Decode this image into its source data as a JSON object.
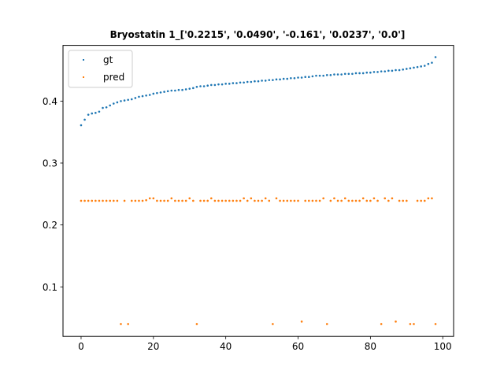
{
  "chart_data": {
    "type": "scatter",
    "title": "Bryostatin 1_['0.2215', '0.0490', '-0.161', '0.0237', '0.0']",
    "xlabel": "",
    "ylabel": "",
    "xlim": [
      -5,
      103
    ],
    "ylim": [
      0.02,
      0.49
    ],
    "xticks": [
      0,
      20,
      40,
      60,
      80,
      100
    ],
    "yticks": [
      0.1,
      0.2,
      0.3,
      0.4
    ],
    "grid": false,
    "legend_position": "top-left",
    "series": [
      {
        "name": "gt",
        "color": "#1f77b4",
        "x": [
          0,
          1,
          2,
          3,
          4,
          5,
          6,
          7,
          8,
          9,
          10,
          11,
          12,
          13,
          14,
          15,
          16,
          17,
          18,
          19,
          20,
          21,
          22,
          23,
          24,
          25,
          26,
          27,
          28,
          29,
          30,
          31,
          32,
          33,
          34,
          35,
          36,
          37,
          38,
          39,
          40,
          41,
          42,
          43,
          44,
          45,
          46,
          47,
          48,
          49,
          50,
          51,
          52,
          53,
          54,
          55,
          56,
          57,
          58,
          59,
          60,
          61,
          62,
          63,
          64,
          65,
          66,
          67,
          68,
          69,
          70,
          71,
          72,
          73,
          74,
          75,
          76,
          77,
          78,
          79,
          80,
          81,
          82,
          83,
          84,
          85,
          86,
          87,
          88,
          89,
          90,
          91,
          92,
          93,
          94,
          95,
          96,
          97,
          98
        ],
        "y": [
          0.361,
          0.37,
          0.378,
          0.38,
          0.381,
          0.383,
          0.389,
          0.39,
          0.393,
          0.396,
          0.398,
          0.4,
          0.401,
          0.402,
          0.403,
          0.405,
          0.407,
          0.408,
          0.409,
          0.41,
          0.412,
          0.413,
          0.414,
          0.415,
          0.416,
          0.417,
          0.417,
          0.418,
          0.418,
          0.419,
          0.42,
          0.421,
          0.423,
          0.424,
          0.424,
          0.425,
          0.426,
          0.426,
          0.427,
          0.427,
          0.428,
          0.428,
          0.429,
          0.429,
          0.43,
          0.43,
          0.431,
          0.431,
          0.432,
          0.432,
          0.433,
          0.433,
          0.434,
          0.434,
          0.435,
          0.435,
          0.436,
          0.436,
          0.437,
          0.437,
          0.438,
          0.438,
          0.439,
          0.439,
          0.44,
          0.441,
          0.441,
          0.441,
          0.442,
          0.442,
          0.443,
          0.443,
          0.443,
          0.444,
          0.444,
          0.444,
          0.445,
          0.445,
          0.445,
          0.446,
          0.446,
          0.447,
          0.447,
          0.448,
          0.448,
          0.449,
          0.449,
          0.45,
          0.45,
          0.451,
          0.452,
          0.453,
          0.454,
          0.455,
          0.456,
          0.457,
          0.46,
          0.462,
          0.471
        ]
      },
      {
        "name": "pred",
        "color": "#ff7f0e",
        "x": [
          0,
          1,
          2,
          3,
          4,
          5,
          6,
          7,
          8,
          9,
          10,
          11,
          12,
          13,
          14,
          15,
          16,
          17,
          18,
          19,
          20,
          21,
          22,
          23,
          24,
          25,
          26,
          27,
          28,
          29,
          30,
          31,
          32,
          33,
          34,
          35,
          36,
          37,
          38,
          39,
          40,
          41,
          42,
          43,
          44,
          45,
          46,
          47,
          48,
          49,
          50,
          51,
          52,
          53,
          54,
          55,
          56,
          57,
          58,
          59,
          60,
          61,
          62,
          63,
          64,
          65,
          66,
          67,
          68,
          69,
          70,
          71,
          72,
          73,
          74,
          75,
          76,
          77,
          78,
          79,
          80,
          81,
          82,
          83,
          84,
          85,
          86,
          87,
          88,
          89,
          90,
          91,
          92,
          93,
          94,
          95,
          96,
          97,
          98
        ],
        "y": [
          0.239,
          0.239,
          0.239,
          0.239,
          0.239,
          0.239,
          0.239,
          0.239,
          0.239,
          0.239,
          0.239,
          0.04,
          0.239,
          0.04,
          0.239,
          0.239,
          0.239,
          0.239,
          0.24,
          0.243,
          0.243,
          0.239,
          0.239,
          0.239,
          0.239,
          0.243,
          0.239,
          0.239,
          0.239,
          0.239,
          0.243,
          0.239,
          0.04,
          0.239,
          0.239,
          0.239,
          0.243,
          0.239,
          0.239,
          0.239,
          0.239,
          0.239,
          0.239,
          0.239,
          0.239,
          0.243,
          0.239,
          0.243,
          0.239,
          0.239,
          0.239,
          0.243,
          0.239,
          0.04,
          0.243,
          0.239,
          0.239,
          0.239,
          0.239,
          0.239,
          0.239,
          0.044,
          0.239,
          0.239,
          0.239,
          0.239,
          0.239,
          0.243,
          0.04,
          0.239,
          0.243,
          0.239,
          0.239,
          0.243,
          0.239,
          0.239,
          0.239,
          0.239,
          0.243,
          0.239,
          0.239,
          0.243,
          0.239,
          0.04,
          0.243,
          0.239,
          0.243,
          0.044,
          0.239,
          0.239,
          0.239,
          0.04,
          0.04,
          0.239,
          0.239,
          0.239,
          0.243,
          0.243,
          0.04
        ]
      }
    ]
  }
}
